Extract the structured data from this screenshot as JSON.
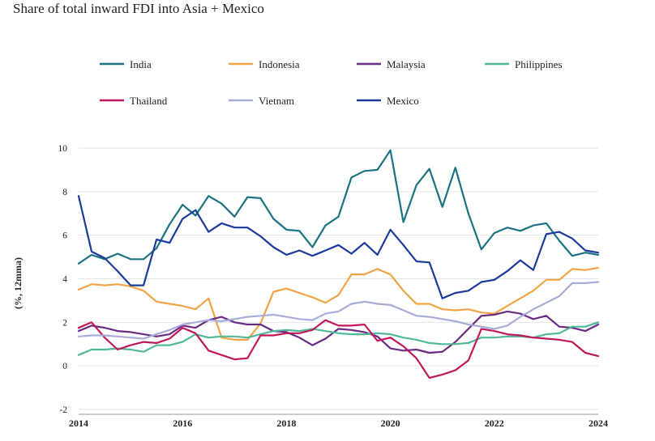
{
  "title": "Share of total inward FDI into Asia + Mexico",
  "chart_data": {
    "type": "line",
    "title": "Share of total inward FDI into Asia + Mexico",
    "xlabel": "",
    "ylabel": "(%, 12mma)",
    "xlim": [
      2014,
      2024
    ],
    "ylim": [
      -2,
      10
    ],
    "yticks": [
      -2,
      0,
      2,
      4,
      6,
      8,
      10
    ],
    "xticks": [
      2014,
      2016,
      2018,
      2020,
      2022,
      2024
    ],
    "grid": true,
    "legend_position": "top",
    "x": [
      2014.0,
      2014.25,
      2014.5,
      2014.75,
      2015.0,
      2015.25,
      2015.5,
      2015.75,
      2016.0,
      2016.25,
      2016.5,
      2016.75,
      2017.0,
      2017.25,
      2017.5,
      2017.75,
      2018.0,
      2018.25,
      2018.5,
      2018.75,
      2019.0,
      2019.25,
      2019.5,
      2019.75,
      2020.0,
      2020.25,
      2020.5,
      2020.75,
      2021.0,
      2021.25,
      2021.5,
      2021.75,
      2022.0,
      2022.25,
      2022.5,
      2022.75,
      2023.0,
      2023.25,
      2023.5,
      2023.75,
      2024.0
    ],
    "series": [
      {
        "name": "India",
        "color": "#1a7282",
        "values": [
          4.7,
          5.1,
          4.9,
          5.15,
          4.9,
          4.9,
          5.4,
          6.5,
          7.4,
          6.9,
          7.8,
          7.45,
          6.85,
          7.75,
          7.7,
          6.75,
          6.25,
          6.2,
          5.45,
          6.45,
          6.85,
          8.65,
          8.95,
          9.0,
          9.9,
          6.6,
          8.3,
          9.05,
          7.3,
          9.1,
          7.0,
          5.35,
          6.1,
          6.35,
          6.2,
          6.45,
          6.55,
          5.75,
          5.05,
          5.2,
          5.1
        ]
      },
      {
        "name": "Indonesia",
        "color": "#f2a443",
        "values": [
          3.5,
          3.75,
          3.7,
          3.75,
          3.65,
          3.45,
          2.95,
          2.85,
          2.75,
          2.6,
          3.1,
          1.3,
          1.2,
          1.2,
          1.95,
          3.4,
          3.55,
          3.35,
          3.15,
          2.9,
          3.25,
          4.2,
          4.2,
          4.45,
          4.2,
          3.45,
          2.85,
          2.85,
          2.6,
          2.55,
          2.6,
          2.45,
          2.4,
          2.75,
          3.1,
          3.45,
          3.95,
          3.95,
          4.45,
          4.4,
          4.5
        ]
      },
      {
        "name": "Malaysia",
        "color": "#6b2a82",
        "values": [
          1.6,
          1.85,
          1.75,
          1.6,
          1.55,
          1.45,
          1.35,
          1.45,
          1.85,
          1.75,
          2.1,
          2.25,
          2.0,
          1.9,
          1.9,
          1.6,
          1.55,
          1.3,
          0.95,
          1.25,
          1.7,
          1.65,
          1.55,
          1.35,
          0.8,
          0.7,
          0.75,
          0.6,
          0.65,
          1.1,
          1.7,
          2.3,
          2.35,
          2.5,
          2.4,
          2.15,
          2.3,
          1.8,
          1.75,
          1.6,
          1.9
        ]
      },
      {
        "name": "Philippines",
        "color": "#4fb89a",
        "values": [
          0.5,
          0.75,
          0.75,
          0.8,
          0.75,
          0.65,
          0.95,
          0.95,
          1.1,
          1.45,
          1.3,
          1.35,
          1.35,
          1.3,
          1.45,
          1.6,
          1.65,
          1.6,
          1.7,
          1.6,
          1.5,
          1.45,
          1.45,
          1.5,
          1.45,
          1.3,
          1.2,
          1.05,
          1.0,
          1.0,
          1.05,
          1.3,
          1.3,
          1.35,
          1.35,
          1.3,
          1.45,
          1.5,
          1.8,
          1.8,
          2.0
        ]
      },
      {
        "name": "Thailand",
        "color": "#c0185a",
        "values": [
          1.75,
          2.0,
          1.3,
          0.75,
          0.95,
          1.1,
          1.05,
          1.25,
          1.75,
          1.5,
          0.7,
          0.5,
          0.3,
          0.35,
          1.4,
          1.4,
          1.5,
          1.5,
          1.65,
          2.1,
          1.85,
          1.85,
          1.9,
          1.15,
          1.3,
          0.9,
          0.35,
          -0.55,
          -0.4,
          -0.2,
          0.25,
          1.7,
          1.6,
          1.45,
          1.4,
          1.3,
          1.25,
          1.2,
          1.1,
          0.6,
          0.45
        ]
      },
      {
        "name": "Vietnam",
        "color": "#a8acd8",
        "values": [
          1.35,
          1.4,
          1.4,
          1.35,
          1.3,
          1.25,
          1.45,
          1.65,
          1.9,
          2.0,
          2.1,
          2.05,
          2.15,
          2.25,
          2.3,
          2.35,
          2.25,
          2.15,
          2.1,
          2.4,
          2.5,
          2.85,
          2.95,
          2.85,
          2.8,
          2.55,
          2.3,
          2.25,
          2.15,
          2.05,
          1.9,
          1.8,
          1.7,
          1.85,
          2.25,
          2.6,
          2.9,
          3.2,
          3.8,
          3.8,
          3.85
        ]
      },
      {
        "name": "Mexico",
        "color": "#1c3a9c",
        "values": [
          7.8,
          5.25,
          4.95,
          4.35,
          3.7,
          3.7,
          5.8,
          5.65,
          6.75,
          7.15,
          6.15,
          6.55,
          6.35,
          6.35,
          5.95,
          5.45,
          5.1,
          5.3,
          5.05,
          5.3,
          5.55,
          5.15,
          5.65,
          5.1,
          6.25,
          5.55,
          4.8,
          4.75,
          3.1,
          3.35,
          3.45,
          3.85,
          3.95,
          4.35,
          4.85,
          4.4,
          6.05,
          6.15,
          5.85,
          5.3,
          5.2
        ]
      }
    ]
  },
  "legend": {
    "items": [
      {
        "label": "India",
        "color": "#1a7282"
      },
      {
        "label": "Indonesia",
        "color": "#f2a443"
      },
      {
        "label": "Malaysia",
        "color": "#6b2a82"
      },
      {
        "label": "Philippines",
        "color": "#4fb89a"
      },
      {
        "label": "Thailand",
        "color": "#c0185a"
      },
      {
        "label": "Vietnam",
        "color": "#a8acd8"
      },
      {
        "label": "Mexico",
        "color": "#1c3a9c"
      }
    ]
  }
}
